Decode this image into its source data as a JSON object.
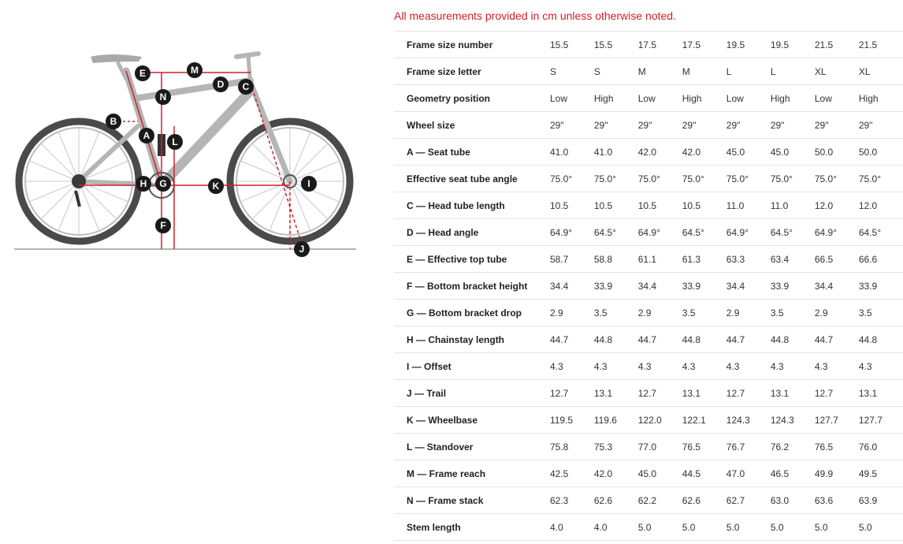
{
  "note": "All measurements provided in cm unless otherwise noted.",
  "diagram_markers": [
    "A",
    "B",
    "C",
    "D",
    "E",
    "F",
    "G",
    "H",
    "I",
    "J",
    "K",
    "L",
    "M",
    "N"
  ],
  "table": {
    "rows": [
      {
        "label": "Frame size number",
        "values": [
          "15.5",
          "15.5",
          "17.5",
          "17.5",
          "19.5",
          "19.5",
          "21.5",
          "21.5"
        ]
      },
      {
        "label": "Frame size letter",
        "values": [
          "S",
          "S",
          "M",
          "M",
          "L",
          "L",
          "XL",
          "XL"
        ]
      },
      {
        "label": "Geometry position",
        "values": [
          "Low",
          "High",
          "Low",
          "High",
          "Low",
          "High",
          "Low",
          "High"
        ]
      },
      {
        "label": "Wheel size",
        "values": [
          "29\"",
          "29\"",
          "29\"",
          "29\"",
          "29\"",
          "29\"",
          "29\"",
          "29\""
        ]
      },
      {
        "label": "A — Seat tube",
        "values": [
          "41.0",
          "41.0",
          "42.0",
          "42.0",
          "45.0",
          "45.0",
          "50.0",
          "50.0"
        ]
      },
      {
        "label": "Effective seat tube angle",
        "values": [
          "75.0°",
          "75.0°",
          "75.0°",
          "75.0°",
          "75.0°",
          "75.0°",
          "75.0°",
          "75.0°"
        ]
      },
      {
        "label": "C — Head tube length",
        "values": [
          "10.5",
          "10.5",
          "10.5",
          "10.5",
          "11.0",
          "11.0",
          "12.0",
          "12.0"
        ]
      },
      {
        "label": "D — Head angle",
        "values": [
          "64.9°",
          "64.5°",
          "64.9°",
          "64.5°",
          "64.9°",
          "64.5°",
          "64.9°",
          "64.5°"
        ]
      },
      {
        "label": "E — Effective top tube",
        "values": [
          "58.7",
          "58.8",
          "61.1",
          "61.3",
          "63.3",
          "63.4",
          "66.5",
          "66.6"
        ]
      },
      {
        "label": "F — Bottom bracket height",
        "values": [
          "34.4",
          "33.9",
          "34.4",
          "33.9",
          "34.4",
          "33.9",
          "34.4",
          "33.9"
        ]
      },
      {
        "label": "G — Bottom bracket drop",
        "values": [
          "2.9",
          "3.5",
          "2.9",
          "3.5",
          "2.9",
          "3.5",
          "2.9",
          "3.5"
        ]
      },
      {
        "label": "H — Chainstay length",
        "values": [
          "44.7",
          "44.8",
          "44.7",
          "44.8",
          "44.7",
          "44.8",
          "44.7",
          "44.8"
        ]
      },
      {
        "label": "I — Offset",
        "values": [
          "4.3",
          "4.3",
          "4.3",
          "4.3",
          "4.3",
          "4.3",
          "4.3",
          "4.3"
        ]
      },
      {
        "label": "J — Trail",
        "values": [
          "12.7",
          "13.1",
          "12.7",
          "13.1",
          "12.7",
          "13.1",
          "12.7",
          "13.1"
        ]
      },
      {
        "label": "K — Wheelbase",
        "values": [
          "119.5",
          "119.6",
          "122.0",
          "122.1",
          "124.3",
          "124.3",
          "127.7",
          "127.7"
        ]
      },
      {
        "label": "L — Standover",
        "values": [
          "75.8",
          "75.3",
          "77.0",
          "76.5",
          "76.7",
          "76.2",
          "76.5",
          "76.0"
        ]
      },
      {
        "label": "M — Frame reach",
        "values": [
          "42.5",
          "42.0",
          "45.0",
          "44.5",
          "47.0",
          "46.5",
          "49.9",
          "49.5"
        ]
      },
      {
        "label": "N — Frame stack",
        "values": [
          "62.3",
          "62.6",
          "62.2",
          "62.6",
          "62.7",
          "63.0",
          "63.6",
          "63.9"
        ]
      },
      {
        "label": "Stem length",
        "values": [
          "4.0",
          "4.0",
          "5.0",
          "5.0",
          "5.0",
          "5.0",
          "5.0",
          "5.0"
        ]
      }
    ]
  }
}
